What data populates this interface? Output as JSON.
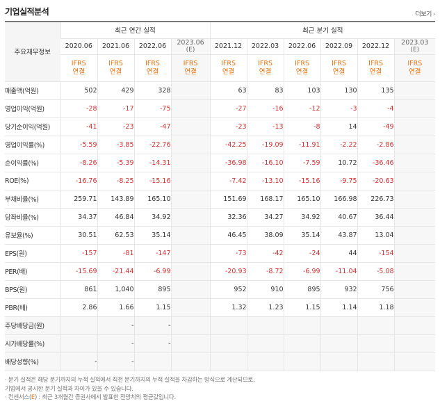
{
  "header": {
    "title": "기업실적분석",
    "more_label": "더보기",
    "more_chevron": "›"
  },
  "table": {
    "label_header": "주요재무정보",
    "annual_group": "최근 연간 실적",
    "quarter_group": "최근 분기 실적",
    "annual_periods": [
      {
        "label": "2020.06",
        "sub": ""
      },
      {
        "label": "2021.06",
        "sub": ""
      },
      {
        "label": "2022.06",
        "sub": ""
      },
      {
        "label": "2023.06",
        "sub": "(E)"
      }
    ],
    "quarter_periods": [
      {
        "label": "2021.12",
        "sub": ""
      },
      {
        "label": "2022.03",
        "sub": ""
      },
      {
        "label": "2022.06",
        "sub": ""
      },
      {
        "label": "2022.09",
        "sub": ""
      },
      {
        "label": "2022.12",
        "sub": ""
      },
      {
        "label": "2023.03",
        "sub": "(E)"
      }
    ],
    "ifrs_line1": "IFRS",
    "ifrs_line2": "연결",
    "rows": [
      {
        "label": "매출액(억원)",
        "values": [
          "502",
          "429",
          "328",
          "",
          "63",
          "83",
          "103",
          "130",
          "135",
          ""
        ]
      },
      {
        "label": "영업이익(억원)",
        "values": [
          "-28",
          "-17",
          "-75",
          "",
          "-27",
          "-16",
          "-12",
          "-3",
          "-4",
          ""
        ]
      },
      {
        "label": "당기순이익(억원)",
        "values": [
          "-41",
          "-23",
          "-47",
          "",
          "-23",
          "-13",
          "-8",
          "14",
          "-49",
          ""
        ]
      },
      {
        "label": "영업이익률(%)",
        "values": [
          "-5.59",
          "-3.85",
          "-22.76",
          "",
          "-42.25",
          "-19.09",
          "-11.91",
          "-2.22",
          "-2.86",
          ""
        ]
      },
      {
        "label": "순이익률(%)",
        "values": [
          "-8.26",
          "-5.39",
          "-14.31",
          "",
          "-36.98",
          "-16.10",
          "-7.59",
          "10.72",
          "-36.46",
          ""
        ]
      },
      {
        "label": "ROE(%)",
        "values": [
          "-16.76",
          "-8.25",
          "-15.16",
          "",
          "-7.42",
          "-13.10",
          "-15.16",
          "-9.75",
          "-20.63",
          ""
        ]
      },
      {
        "label": "부채비율(%)",
        "values": [
          "259.71",
          "143.89",
          "165.10",
          "",
          "151.69",
          "168.17",
          "165.10",
          "166.98",
          "226.73",
          ""
        ]
      },
      {
        "label": "당좌비율(%)",
        "values": [
          "34.37",
          "46.84",
          "34.92",
          "",
          "32.36",
          "34.27",
          "34.92",
          "40.67",
          "36.44",
          ""
        ]
      },
      {
        "label": "유보율(%)",
        "values": [
          "30.51",
          "62.53",
          "35.14",
          "",
          "46.45",
          "38.09",
          "35.14",
          "43.87",
          "13.04",
          ""
        ]
      },
      {
        "label": "EPS(원)",
        "values": [
          "-157",
          "-81",
          "-147",
          "",
          "-73",
          "-42",
          "-24",
          "44",
          "-154",
          ""
        ]
      },
      {
        "label": "PER(배)",
        "values": [
          "-15.69",
          "-21.44",
          "-6.99",
          "",
          "-20.93",
          "-8.72",
          "-6.99",
          "-11.04",
          "-5.08",
          ""
        ]
      },
      {
        "label": "BPS(원)",
        "values": [
          "861",
          "1,040",
          "895",
          "",
          "952",
          "910",
          "895",
          "932",
          "756",
          ""
        ]
      },
      {
        "label": "PBR(배)",
        "values": [
          "2.86",
          "1.66",
          "1.15",
          "",
          "1.32",
          "1.23",
          "1.15",
          "1.14",
          "1.18",
          ""
        ]
      },
      {
        "label": "주당배당금(원)",
        "values": [
          "",
          "-",
          "-",
          "",
          "",
          "",
          "",
          "",
          "",
          ""
        ]
      },
      {
        "label": "시가배당률(%)",
        "values": [
          "",
          "-",
          "-",
          "",
          "",
          "",
          "",
          "",
          "",
          ""
        ]
      },
      {
        "label": "배당성향(%)",
        "values": [
          "-",
          "-",
          "",
          "",
          "",
          "",
          "",
          "",
          "",
          ""
        ]
      }
    ]
  },
  "notes": {
    "line1": "· 분기 실적은 해당 분기까지의 누적 실적에서 직전 분기까지의 누적 실적을 차감하는 방식으로 계산되므로,",
    "line2": "  기업에서 공시한 분기 실적과 차이가 있을 수 있습니다.",
    "line3_prefix": "· 컨센서스(",
    "line3_e": "E",
    "line3_suffix": ") : 최근 3개월간 증권사에서 발표한 전망치의 평균값입니다."
  },
  "colors": {
    "negative": "#d32f2f",
    "ifrs": "#e8700a",
    "estimate_bg": "#f7f7f7"
  }
}
